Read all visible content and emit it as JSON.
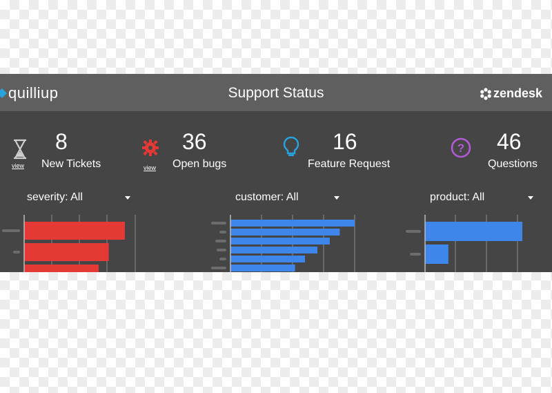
{
  "header": {
    "left_logo": "quilliup",
    "title": "Support Status",
    "right_logo": "zendesk"
  },
  "stats": [
    {
      "icon": "hourglass-icon",
      "value": "8",
      "label": "New Tickets",
      "link": "view",
      "color": "#c9c9c9"
    },
    {
      "icon": "bug-icon",
      "value": "36",
      "label": "Open bugs",
      "link": "view",
      "color": "#e53935"
    },
    {
      "icon": "lightbulb-icon",
      "value": "16",
      "label": "Feature Request",
      "color": "#29a3e0"
    },
    {
      "icon": "question-circle-icon",
      "value": "46",
      "label": "Questions",
      "color": "#b05ad6"
    }
  ],
  "filters": [
    {
      "label": "severity: All"
    },
    {
      "label": "customer: All"
    },
    {
      "label": "product: All"
    }
  ],
  "charts": [
    {
      "color": "#e53935",
      "values": [
        100,
        84,
        74
      ]
    },
    {
      "color": "#3f86ea",
      "values": [
        100,
        88,
        80,
        70,
        60,
        52
      ]
    },
    {
      "color": "#3f86ea",
      "values": [
        100,
        24
      ]
    }
  ],
  "colors": {
    "app_background": "#454545",
    "header_background": "#5f5f5f",
    "text": "#ffffff"
  }
}
